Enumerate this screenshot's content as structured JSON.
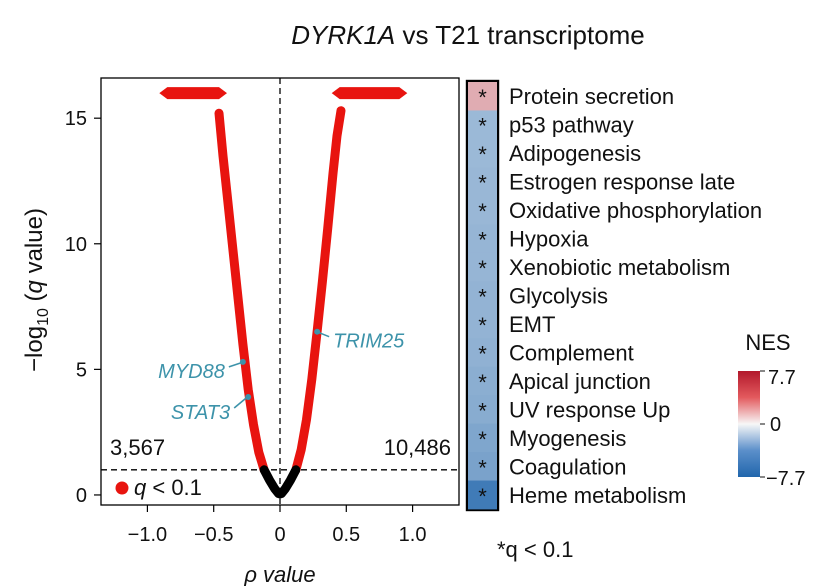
{
  "figure": {
    "title_italic": "DYRK1A",
    "title_rest": " vs T21 transcriptome"
  },
  "volcano": {
    "xlabel": "ρ value",
    "ylabel": "−log10 (q value)",
    "ylabel_parts": {
      "pre": "−log",
      "sub": "10",
      "mid": " (",
      "q": "q",
      "post": " value)"
    },
    "left_count": "3,567",
    "right_count": "10,486",
    "legend_label": "q < 0.1",
    "legend_parts": {
      "q": "q",
      "rest": " < 0.1"
    },
    "genes": [
      {
        "name": "MYD88",
        "rho": -0.28,
        "y": 5.3
      },
      {
        "name": "STAT3",
        "rho": -0.24,
        "y": 3.9
      },
      {
        "name": "TRIM25",
        "rho": 0.28,
        "y": 6.5
      }
    ],
    "colors": {
      "significant": "#e8140f",
      "nonsignificant": "#000000",
      "gene_label": "#3d93aa"
    }
  },
  "chart_data": [
    {
      "type": "scatter",
      "subtype": "volcano",
      "xlabel": "ρ value",
      "ylabel": "−log10 (q value)",
      "xlim": [
        -1.35,
        1.35
      ],
      "ylim": [
        -0.4,
        16.6
      ],
      "xticks": [
        -1.0,
        -0.5,
        0,
        0.5,
        1.0
      ],
      "xtick_labels": [
        "−1.0",
        "−0.5",
        "0",
        "0.5",
        "1.0"
      ],
      "yticks": [
        0,
        5,
        10,
        15
      ],
      "ytick_labels": [
        "0",
        "5",
        "10",
        "15"
      ],
      "threshold_y": 1.0,
      "threshold_x": 0,
      "left_count": "3,567",
      "right_count": "10,486",
      "capped_y": 16,
      "capped_left_range": [
        -0.88,
        -0.43
      ],
      "capped_right_range": [
        0.42,
        0.93
      ],
      "curve_left": [
        [
          -0.46,
          15.2
        ],
        [
          -0.43,
          13.5
        ],
        [
          -0.4,
          12.0
        ],
        [
          -0.36,
          10.0
        ],
        [
          -0.32,
          8.0
        ],
        [
          -0.28,
          6.0
        ],
        [
          -0.24,
          4.2
        ],
        [
          -0.2,
          2.8
        ],
        [
          -0.16,
          1.7
        ],
        [
          -0.12,
          1.0
        ],
        [
          -0.08,
          0.6
        ],
        [
          -0.04,
          0.25
        ],
        [
          -0.01,
          0.05
        ]
      ],
      "curve_right": [
        [
          0.01,
          0.05
        ],
        [
          0.04,
          0.25
        ],
        [
          0.08,
          0.6
        ],
        [
          0.12,
          1.0
        ],
        [
          0.16,
          1.8
        ],
        [
          0.2,
          3.0
        ],
        [
          0.24,
          4.6
        ],
        [
          0.28,
          6.5
        ],
        [
          0.32,
          8.5
        ],
        [
          0.36,
          10.6
        ],
        [
          0.4,
          12.8
        ],
        [
          0.43,
          14.3
        ],
        [
          0.46,
          15.3
        ]
      ],
      "legend": [
        "q < 0.1"
      ],
      "labeled_points": [
        {
          "label": "MYD88",
          "x": -0.28,
          "y": 5.3
        },
        {
          "label": "STAT3",
          "x": -0.24,
          "y": 3.9
        },
        {
          "label": "TRIM25",
          "x": 0.28,
          "y": 6.5
        }
      ]
    },
    {
      "type": "heatmap",
      "rows": [
        "Protein secretion",
        "p53 pathway",
        "Adipogenesis",
        "Estrogen response late",
        "Oxidative phosphorylation",
        "Hypoxia",
        "Xenobiotic metabolism",
        "Glycolysis",
        "EMT",
        "Complement",
        "Apical junction",
        "UV response Up",
        "Myogenesis",
        "Coagulation",
        "Heme metabolism"
      ],
      "values": [
        2.6,
        -3.3,
        -3.3,
        -3.4,
        -3.4,
        -3.5,
        -3.5,
        -3.6,
        -3.6,
        -3.7,
        -3.9,
        -4.0,
        -4.3,
        -4.5,
        -6.6
      ],
      "significant": [
        true,
        true,
        true,
        true,
        true,
        true,
        true,
        true,
        true,
        true,
        true,
        true,
        true,
        true,
        true
      ],
      "cell_marker": "*",
      "colorbar_title": "NES",
      "colorbar_range": [
        -7.7,
        7.7
      ],
      "colorbar_tick_labels": [
        "7.7",
        "0",
        "−7.7"
      ],
      "footnote": "*q < 0.1"
    }
  ],
  "heatmap": {
    "colorbar_title": "NES",
    "colorbar_ticks": [
      "7.7",
      "0",
      "−7.7"
    ],
    "footnote": "*q < 0.1",
    "colors": {
      "high": "#b2182b",
      "mid": "#f7f7f7",
      "low": "#2166ac"
    }
  }
}
